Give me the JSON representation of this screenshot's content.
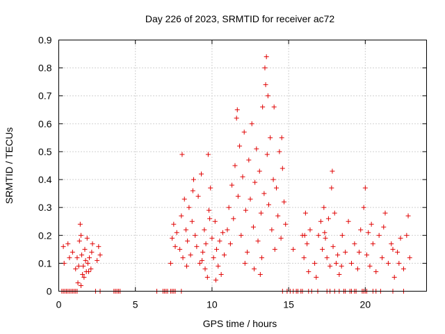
{
  "chart_data": {
    "type": "scatter",
    "title": "Day 226 of 2023, SRMTID for receiver ac72",
    "xlabel": "GPS time / hours",
    "ylabel": "SRMTID / TECUs",
    "xlim": [
      0,
      24
    ],
    "ylim": [
      0,
      0.9
    ],
    "xticks": [
      0,
      5,
      10,
      15,
      20
    ],
    "xtick_labels": [
      "0",
      "5",
      "10",
      "15",
      "20"
    ],
    "yticks": [
      0,
      0.1,
      0.2,
      0.3,
      0.4,
      0.5,
      0.6,
      0.7,
      0.8,
      0.9
    ],
    "ytick_labels": [
      "0",
      "0.1",
      "0.2",
      "0.3",
      "0.4",
      "0.5",
      "0.6",
      "0.7",
      "0.8",
      "0.9"
    ],
    "grid": true,
    "marker": "+",
    "color": "#e00000",
    "series": [
      {
        "name": "SRMTID",
        "points": [
          [
            0.3,
            0.16
          ],
          [
            0.35,
            0.1
          ],
          [
            0.6,
            0.17
          ],
          [
            0.7,
            0.12
          ],
          [
            0.9,
            0.14
          ],
          [
            1.1,
            0.08
          ],
          [
            1.2,
            0.12
          ],
          [
            1.3,
            0.09
          ],
          [
            1.35,
            0.18
          ],
          [
            1.4,
            0.24
          ],
          [
            1.45,
            0.2
          ],
          [
            1.5,
            0.13
          ],
          [
            1.55,
            0.06
          ],
          [
            1.6,
            0.09
          ],
          [
            1.7,
            0.15
          ],
          [
            1.75,
            0.11
          ],
          [
            1.8,
            0.07
          ],
          [
            1.85,
            0.19
          ],
          [
            1.9,
            0.1
          ],
          [
            2.0,
            0.12
          ],
          [
            2.1,
            0.08
          ],
          [
            2.15,
            0.14
          ],
          [
            2.2,
            0.17
          ],
          [
            2.5,
            0.11
          ],
          [
            2.6,
            0.16
          ],
          [
            2.7,
            0.13
          ],
          [
            1.25,
            0.03
          ],
          [
            1.45,
            0.02
          ],
          [
            1.65,
            0.05
          ],
          [
            1.95,
            0.07
          ],
          [
            7.3,
            0.1
          ],
          [
            7.4,
            0.19
          ],
          [
            7.5,
            0.24
          ],
          [
            7.6,
            0.16
          ],
          [
            7.7,
            0.21
          ],
          [
            7.9,
            0.15
          ],
          [
            8.0,
            0.27
          ],
          [
            8.05,
            0.49
          ],
          [
            8.1,
            0.12
          ],
          [
            8.2,
            0.33
          ],
          [
            8.3,
            0.22
          ],
          [
            8.4,
            0.18
          ],
          [
            8.5,
            0.3
          ],
          [
            8.6,
            0.13
          ],
          [
            8.7,
            0.25
          ],
          [
            8.8,
            0.4
          ],
          [
            8.9,
            0.2
          ],
          [
            9.0,
            0.16
          ],
          [
            9.1,
            0.34
          ],
          [
            9.2,
            0.1
          ],
          [
            9.3,
            0.42
          ],
          [
            9.4,
            0.14
          ],
          [
            9.5,
            0.22
          ],
          [
            9.6,
            0.17
          ],
          [
            9.7,
            0.05
          ],
          [
            9.8,
            0.29
          ],
          [
            9.9,
            0.37
          ],
          [
            10.0,
            0.19
          ],
          [
            10.1,
            0.12
          ],
          [
            10.2,
            0.25
          ],
          [
            10.3,
            0.15
          ],
          [
            10.4,
            0.09
          ],
          [
            10.5,
            0.18
          ],
          [
            10.6,
            0.06
          ],
          [
            10.7,
            0.21
          ],
          [
            10.8,
            0.13
          ],
          [
            9.75,
            0.49
          ],
          [
            9.55,
            0.08
          ],
          [
            9.35,
            0.11
          ],
          [
            10.25,
            0.04
          ],
          [
            8.35,
            0.09
          ],
          [
            8.75,
            0.36
          ],
          [
            9.85,
            0.26
          ],
          [
            11.0,
            0.22
          ],
          [
            11.1,
            0.3
          ],
          [
            11.2,
            0.17
          ],
          [
            11.3,
            0.38
          ],
          [
            11.4,
            0.26
          ],
          [
            11.5,
            0.45
          ],
          [
            11.6,
            0.62
          ],
          [
            11.7,
            0.34
          ],
          [
            11.8,
            0.52
          ],
          [
            11.9,
            0.2
          ],
          [
            12.0,
            0.41
          ],
          [
            12.1,
            0.57
          ],
          [
            12.2,
            0.29
          ],
          [
            12.3,
            0.14
          ],
          [
            12.4,
            0.47
          ],
          [
            12.5,
            0.33
          ],
          [
            12.6,
            0.6
          ],
          [
            12.7,
            0.23
          ],
          [
            12.8,
            0.39
          ],
          [
            12.9,
            0.51
          ],
          [
            13.0,
            0.18
          ],
          [
            13.1,
            0.43
          ],
          [
            13.2,
            0.28
          ],
          [
            13.3,
            0.66
          ],
          [
            13.4,
            0.35
          ],
          [
            13.5,
            0.74
          ],
          [
            13.55,
            0.84
          ],
          [
            13.6,
            0.49
          ],
          [
            13.7,
            0.31
          ],
          [
            13.8,
            0.55
          ],
          [
            13.9,
            0.22
          ],
          [
            14.0,
            0.4
          ],
          [
            14.1,
            0.15
          ],
          [
            14.2,
            0.37
          ],
          [
            14.3,
            0.27
          ],
          [
            14.4,
            0.5
          ],
          [
            14.5,
            0.19
          ],
          [
            14.6,
            0.44
          ],
          [
            14.7,
            0.32
          ],
          [
            14.8,
            0.24
          ],
          [
            11.65,
            0.65
          ],
          [
            12.15,
            0.1
          ],
          [
            12.75,
            0.08
          ],
          [
            13.25,
            0.12
          ],
          [
            13.45,
            0.8
          ],
          [
            13.65,
            0.7
          ],
          [
            14.05,
            0.66
          ],
          [
            14.55,
            0.55
          ],
          [
            13.15,
            0.06
          ],
          [
            15.3,
            0.15
          ],
          [
            15.9,
            0.2
          ],
          [
            16.0,
            0.12
          ],
          [
            16.1,
            0.28
          ],
          [
            16.2,
            0.17
          ],
          [
            16.3,
            0.07
          ],
          [
            16.4,
            0.22
          ],
          [
            16.7,
            0.1
          ],
          [
            16.8,
            0.05
          ],
          [
            16.95,
            0.2
          ],
          [
            17.1,
            0.25
          ],
          [
            17.2,
            0.15
          ],
          [
            17.3,
            0.3
          ],
          [
            17.4,
            0.19
          ],
          [
            17.5,
            0.12
          ],
          [
            17.6,
            0.26
          ],
          [
            17.7,
            0.09
          ],
          [
            17.8,
            0.37
          ],
          [
            17.85,
            0.43
          ],
          [
            17.9,
            0.16
          ],
          [
            18.0,
            0.28
          ],
          [
            18.1,
            0.1
          ],
          [
            18.2,
            0.13
          ],
          [
            18.3,
            0.06
          ],
          [
            18.5,
            0.2
          ],
          [
            18.7,
            0.14
          ],
          [
            18.9,
            0.25
          ],
          [
            19.1,
            0.1
          ],
          [
            19.3,
            0.17
          ],
          [
            19.5,
            0.08
          ],
          [
            19.7,
            0.22
          ],
          [
            19.9,
            0.3
          ],
          [
            20.0,
            0.37
          ],
          [
            20.1,
            0.13
          ],
          [
            20.2,
            0.21
          ],
          [
            20.3,
            0.09
          ],
          [
            20.5,
            0.17
          ],
          [
            20.7,
            0.07
          ],
          [
            20.9,
            0.2
          ],
          [
            21.1,
            0.12
          ],
          [
            21.3,
            0.28
          ],
          [
            21.5,
            0.1
          ],
          [
            21.7,
            0.17
          ],
          [
            21.9,
            0.05
          ],
          [
            22.1,
            0.14
          ],
          [
            22.3,
            0.19
          ],
          [
            22.5,
            0.08
          ],
          [
            22.7,
            0.2
          ],
          [
            22.8,
            0.27
          ],
          [
            22.9,
            0.12
          ],
          [
            16.05,
            0.2
          ],
          [
            17.35,
            0.21
          ],
          [
            18.45,
            0.09
          ],
          [
            19.6,
            0.14
          ],
          [
            20.4,
            0.24
          ],
          [
            21.2,
            0.23
          ],
          [
            22.2,
            0.1
          ],
          [
            21.8,
            0.15
          ]
        ],
        "zero_points": [
          0.2,
          0.3,
          0.4,
          0.5,
          0.6,
          0.7,
          0.8,
          0.9,
          1.0,
          1.1,
          1.2,
          2.4,
          2.7,
          3.6,
          3.7,
          3.8,
          3.9,
          4.0,
          6.4,
          6.8,
          6.9,
          7.0,
          7.1,
          7.3,
          7.4,
          7.5,
          7.6,
          8.0,
          14.6,
          14.9,
          15.1,
          15.3,
          15.5,
          15.6,
          15.8,
          15.9,
          16.3,
          16.5,
          16.9,
          17.5,
          17.7,
          18.0,
          18.3,
          18.6,
          18.7,
          19.0,
          19.1,
          19.3,
          19.4,
          19.8,
          19.9,
          20.0,
          20.1,
          20.5,
          20.7,
          21.0,
          21.8,
          22.5
        ]
      }
    ]
  }
}
